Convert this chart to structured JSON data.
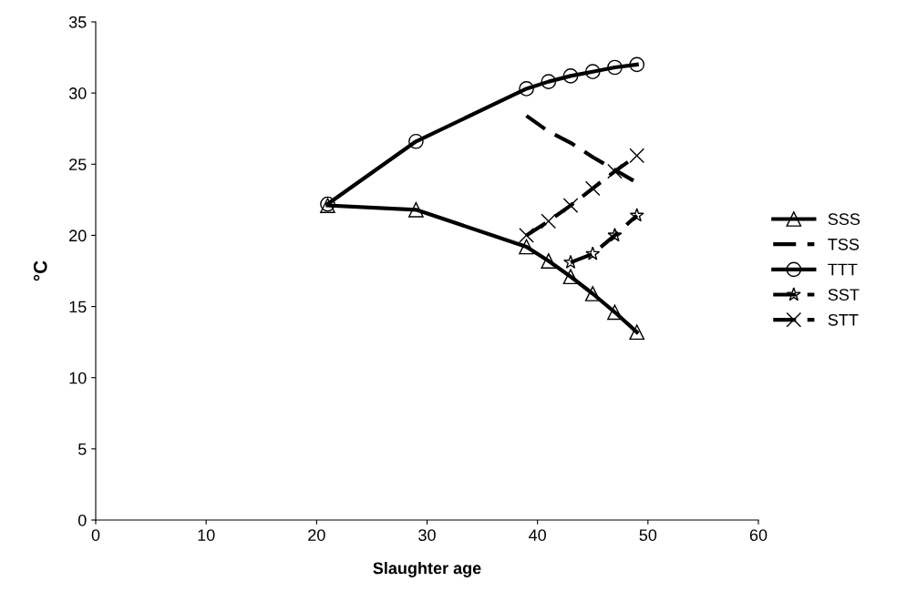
{
  "chart_data": {
    "type": "line",
    "xlabel": "Slaughter age",
    "ylabel": "°C",
    "xlim": [
      0,
      60
    ],
    "xticks": [
      0,
      10,
      20,
      30,
      40,
      50,
      60
    ],
    "ylim": [
      0,
      35
    ],
    "yticks": [
      0,
      5,
      10,
      15,
      20,
      25,
      30,
      35
    ],
    "grid": false,
    "legend": "right",
    "series": [
      {
        "name": "SSS",
        "color": "#000000",
        "marker": "triangle",
        "line_style": "solid",
        "x": [
          21,
          29,
          39,
          41,
          43,
          45,
          47,
          49
        ],
        "values": [
          22.1,
          21.8,
          19.2,
          18.2,
          17.1,
          15.9,
          14.6,
          13.2
        ]
      },
      {
        "name": "TSS",
        "color": "#000000",
        "marker": "none",
        "line_style": "dashed",
        "x": [
          39,
          41,
          43,
          45,
          47,
          49
        ],
        "values": [
          28.4,
          27.3,
          26.5,
          25.5,
          24.6,
          23.7
        ]
      },
      {
        "name": "TTT",
        "color": "#000000",
        "marker": "circle",
        "line_style": "solid",
        "x": [
          21,
          29,
          39,
          41,
          43,
          45,
          47,
          49
        ],
        "values": [
          22.2,
          26.6,
          30.3,
          30.8,
          31.2,
          31.5,
          31.8,
          32.0
        ]
      },
      {
        "name": "SST",
        "color": "#000000",
        "marker": "star",
        "line_style": "dashed",
        "x": [
          43,
          45,
          47,
          49
        ],
        "values": [
          18.1,
          18.7,
          20.0,
          21.4
        ]
      },
      {
        "name": "STT",
        "color": "#000000",
        "marker": "cross",
        "line_style": "dashed",
        "x": [
          39,
          41,
          43,
          45,
          47,
          49
        ],
        "values": [
          20.0,
          21.0,
          22.1,
          23.3,
          24.5,
          25.6
        ]
      }
    ]
  }
}
